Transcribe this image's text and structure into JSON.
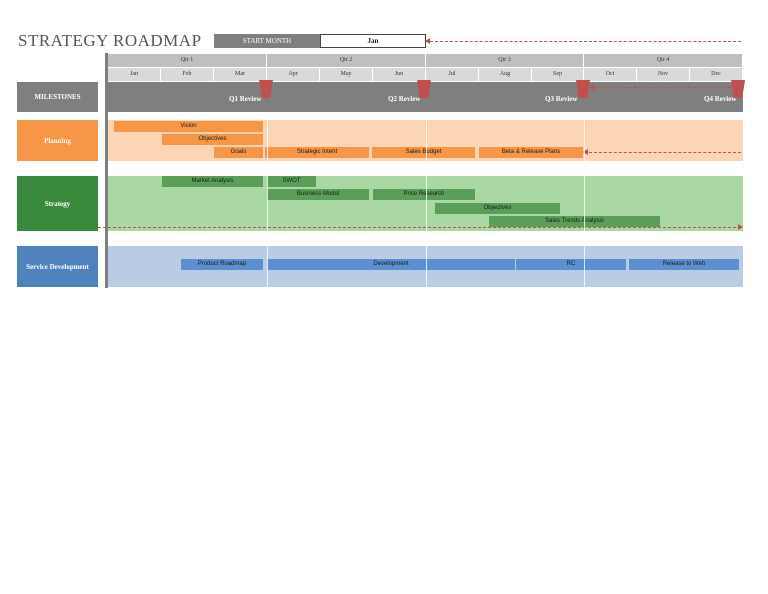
{
  "title": "STRATEGY ROADMAP",
  "start_month": {
    "label": "START MONTH",
    "value": "Jan"
  },
  "quarters": [
    "Qtr 1",
    "Qtr 2",
    "Qtr 3",
    "Qtr 4"
  ],
  "months": [
    "Jan",
    "Feb",
    "Mar",
    "Apr",
    "May",
    "Jun",
    "Jul",
    "Aug",
    "Sep",
    "Oct",
    "Nov",
    "Dec"
  ],
  "milestones": {
    "label": "MILESTONES",
    "reviews": [
      "Q1 Review",
      "Q2 Review",
      "Q3 Review",
      "Q4 Review"
    ]
  },
  "lanes": {
    "planning": {
      "label": "Planning",
      "items": [
        "Vision",
        "Objectives",
        "Goals",
        "Strategic Intent",
        "Sales Budget",
        "Beta & Release Plans"
      ]
    },
    "strategy": {
      "label": "Strategy",
      "items": [
        "Market Analysis",
        "SWOT",
        "Business Model",
        "Price Research",
        "Objectives",
        "Sales Trends Analysis"
      ]
    },
    "service": {
      "label": "Service Development",
      "items": [
        "Product Roadmap",
        "Development",
        "RC",
        "Release to Web"
      ]
    }
  },
  "colors": {
    "planning": "#f79646",
    "planning_band": "#fcd5b4",
    "strategy": "#3a8a3e",
    "strategy_band": "#a9d8a4",
    "service": "#4f81bd",
    "service_band": "#b8cce4",
    "milestone_flag": "#c0504d",
    "header_gray": "#7f7f7f"
  }
}
